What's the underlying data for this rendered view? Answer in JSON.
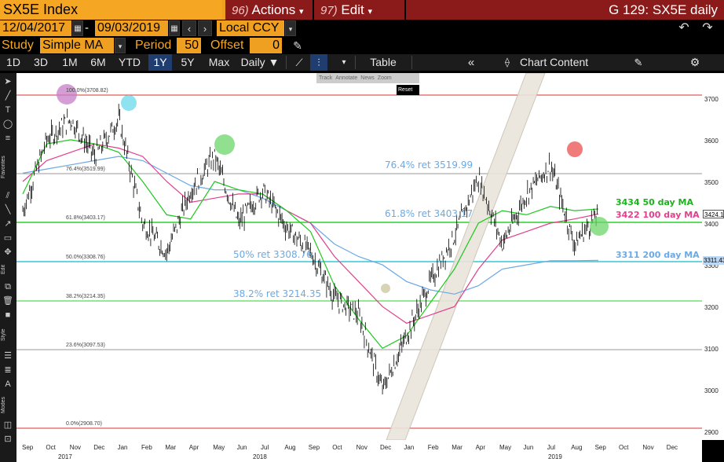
{
  "header": {
    "security": "SX5E Index",
    "actions_num": "96)",
    "actions_label": "Actions",
    "edit_num": "97)",
    "edit_label": "Edit",
    "graph_title": "G 129: SX5E daily"
  },
  "range": {
    "start_date": "12/04/2017",
    "dash": "-",
    "end_date": "09/03/2019",
    "currency": "Local CCY"
  },
  "study": {
    "study_label": "Study",
    "study_value": "Simple MA",
    "period_label": "Period",
    "period_value": "50",
    "offset_label": "Offset",
    "offset_value": "0"
  },
  "toolbar": {
    "periods": [
      "1D",
      "3D",
      "1M",
      "6M",
      "YTD",
      "1Y",
      "5Y",
      "Max"
    ],
    "active_period": "1Y",
    "frequency": "Daily ▼",
    "table_label": "Table",
    "chart_content_label": "Chart Content"
  },
  "mini_toolbar": {
    "items": [
      "Track",
      "Annotate",
      "News",
      "Zoom"
    ],
    "reset": "Reset"
  },
  "left_tools": {
    "favorites": "Favorites",
    "edit": "Edit",
    "style": "Style",
    "modes": "Modes"
  },
  "colors": {
    "orange": "#f5a623",
    "maroon": "#8b1a1a",
    "price": "#000000",
    "ma50": "#1ec81e",
    "ma100": "#e0408c",
    "ma200": "#6aa8e8",
    "fib_label": "#6aaae6"
  },
  "annotations": {
    "ret_764": "76.4% ret 3519.99",
    "ret_618": "61.8% ret 3403.17",
    "ret_50": "50% ret 3308.76",
    "ret_382": "38.2% ret 3214.35",
    "ma50_label": "3434 50 day MA",
    "ma100_label": "3422 100 day MA",
    "ma200_label": "3311 200 day MA"
  },
  "fib_small": {
    "f100": "100.0%(3708.82)",
    "f764": "76.4%(3519.99)",
    "f618": "61.8%(3403.17)",
    "f50": "50.0%(3308.76)",
    "f382": "38.2%(3214.35)",
    "f236": "23.6%(3097.53)",
    "f0": "0.0%(2908.70)"
  },
  "y_axis": {
    "ticks": [
      "3700",
      "3600",
      "3500",
      "3400",
      "3300",
      "3200",
      "3100",
      "3000",
      "2900"
    ],
    "last_price": "3424.10",
    "last_ma200": "3311.43"
  },
  "x_axis": {
    "months": [
      "Sep",
      "Oct",
      "Nov",
      "Dec",
      "Jan",
      "Feb",
      "Mar",
      "Apr",
      "May",
      "Jun",
      "Jul",
      "Aug",
      "Sep",
      "Oct",
      "Nov",
      "Dec",
      "Jan",
      "Feb",
      "Mar",
      "Apr",
      "May",
      "Jun",
      "Jul",
      "Aug",
      "Sep",
      "Oct",
      "Nov",
      "Dec"
    ],
    "years": [
      "2017",
      "2018",
      "2019"
    ]
  },
  "chart_data": {
    "type": "line",
    "title": "SX5E daily",
    "ylim": [
      2880,
      3760
    ],
    "x": [
      "2017-09",
      "2017-10",
      "2017-11",
      "2017-12",
      "2018-01",
      "2018-02",
      "2018-03",
      "2018-04",
      "2018-05",
      "2018-06",
      "2018-07",
      "2018-08",
      "2018-09",
      "2018-10",
      "2018-11",
      "2018-12",
      "2019-01",
      "2019-02",
      "2019-03",
      "2019-04",
      "2019-05",
      "2019-06",
      "2019-07",
      "2019-08",
      "2019-09"
    ],
    "series": [
      {
        "values": [
          3430,
          3600,
          3650,
          3560,
          3650,
          3400,
          3330,
          3480,
          3560,
          3400,
          3480,
          3390,
          3330,
          3220,
          3180,
          3000,
          3130,
          3260,
          3370,
          3510,
          3350,
          3470,
          3540,
          3350,
          3424
        ]
      },
      {
        "name": "50 day MA",
        "values": [
          3470,
          3590,
          3600,
          3590,
          3570,
          3500,
          3420,
          3410,
          3500,
          3480,
          3470,
          3430,
          3380,
          3250,
          3170,
          3100,
          3130,
          3210,
          3290,
          3400,
          3430,
          3420,
          3440,
          3430,
          3434
        ]
      },
      {
        "name": "100 day MA",
        "values": [
          3500,
          3550,
          3570,
          3590,
          3580,
          3560,
          3500,
          3450,
          3460,
          3470,
          3470,
          3430,
          3400,
          3320,
          3260,
          3200,
          3160,
          3180,
          3200,
          3290,
          3360,
          3380,
          3400,
          3410,
          3422
        ]
      },
      {
        "name": "200 day MA",
        "values": [
          3520,
          3530,
          3540,
          3550,
          3560,
          3550,
          3520,
          3490,
          3480,
          3480,
          3460,
          3430,
          3400,
          3350,
          3320,
          3300,
          3260,
          3240,
          3230,
          3250,
          3290,
          3300,
          3310,
          3310,
          3311
        ]
      }
    ],
    "ylabel": "",
    "xlabel": ""
  }
}
